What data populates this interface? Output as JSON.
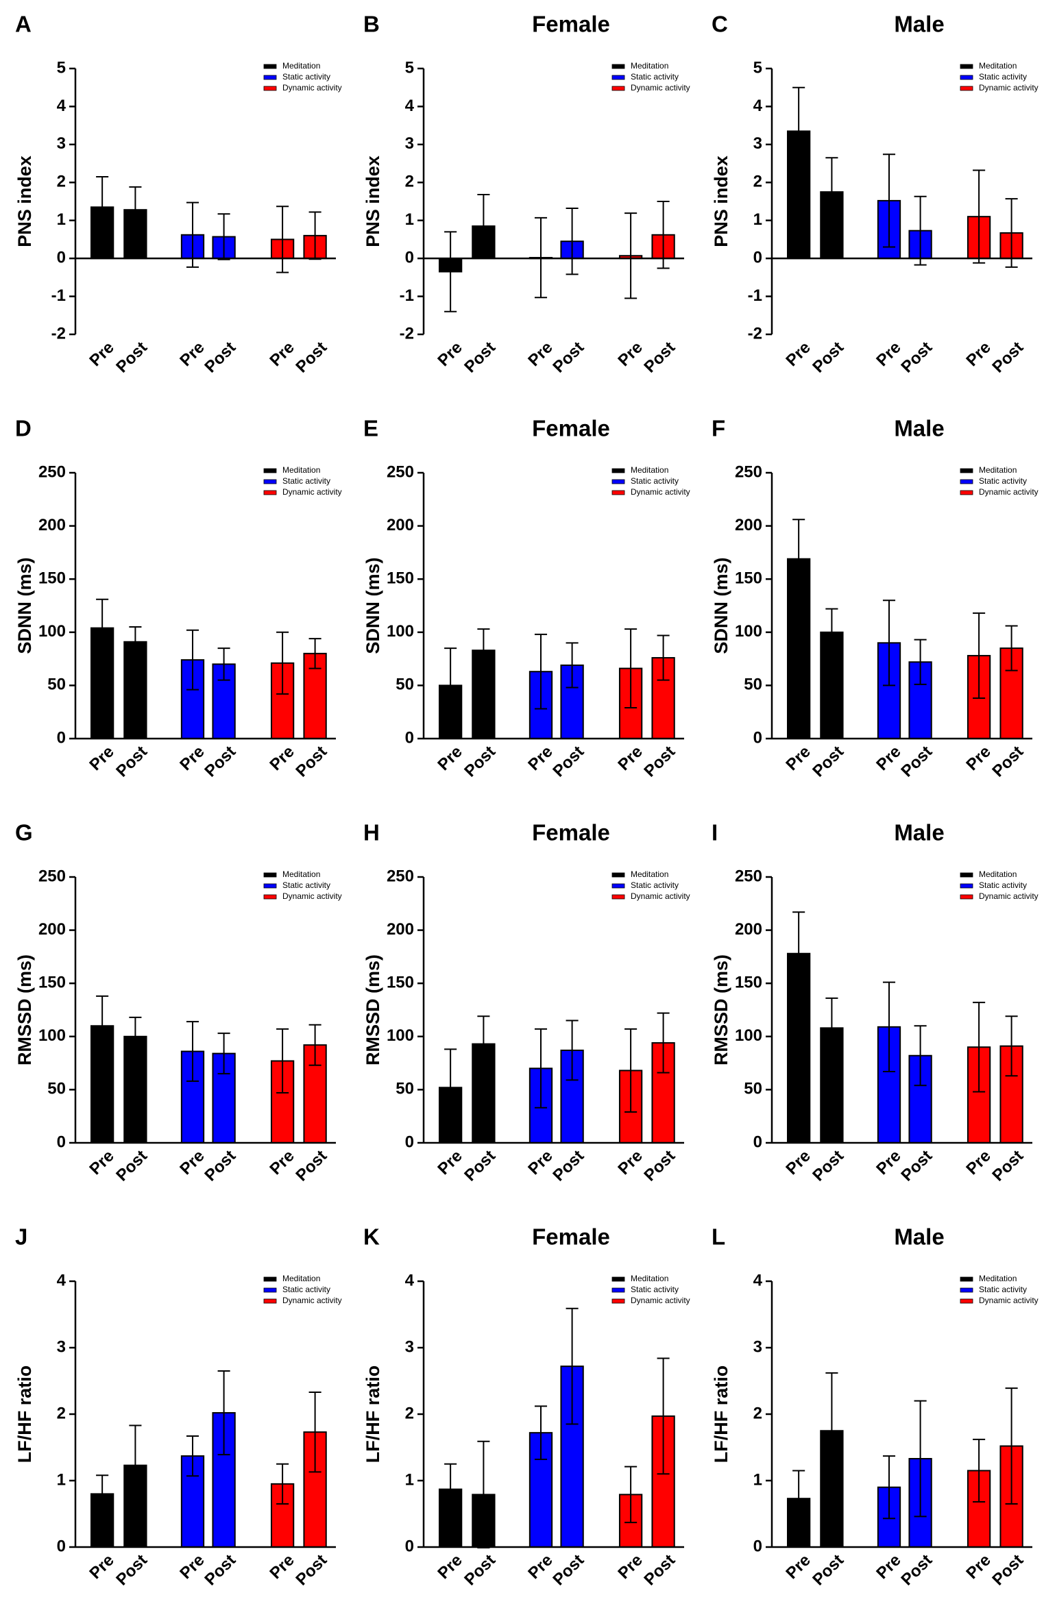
{
  "chart_data": [
    {
      "type": "bar",
      "label": "A",
      "y_label": "PNS index",
      "ylim": [
        -2,
        5
      ],
      "yticks": [
        -2,
        -1,
        0,
        1,
        2,
        3,
        4,
        5
      ],
      "categories": [
        "Pre",
        "Post",
        "Pre",
        "Post",
        "Pre",
        "Post"
      ],
      "series": [
        {
          "name": "Meditation",
          "color": "#000000",
          "values": [
            1.35,
            1.28,
            null,
            null,
            null,
            null
          ],
          "errors": [
            0.8,
            0.6,
            null,
            null,
            null,
            null
          ]
        },
        {
          "name": "Static activity",
          "color": "#0000ff",
          "values": [
            null,
            null,
            0.62,
            0.57,
            null,
            null
          ],
          "errors": [
            null,
            null,
            0.85,
            0.6,
            null,
            null
          ]
        },
        {
          "name": "Dynamic activity",
          "color": "#ff0000",
          "values": [
            null,
            null,
            null,
            null,
            0.5,
            0.6
          ],
          "errors": [
            null,
            null,
            null,
            null,
            0.87,
            0.62
          ]
        }
      ]
    },
    {
      "type": "bar",
      "label": "B",
      "title": "Female",
      "y_label": "PNS index",
      "ylim": [
        -2,
        5
      ],
      "yticks": [
        -2,
        -1,
        0,
        1,
        2,
        3,
        4,
        5
      ],
      "categories": [
        "Pre",
        "Post",
        "Pre",
        "Post",
        "Pre",
        "Post"
      ],
      "series": [
        {
          "name": "Meditation",
          "color": "#000000",
          "values": [
            -0.35,
            0.85,
            null,
            null,
            null,
            null
          ],
          "errors": [
            1.05,
            0.83,
            null,
            null,
            null,
            null
          ]
        },
        {
          "name": "Static activity",
          "color": "#0000ff",
          "values": [
            null,
            null,
            0.02,
            0.45,
            null,
            null
          ],
          "errors": [
            null,
            null,
            1.05,
            0.87,
            null,
            null
          ]
        },
        {
          "name": "Dynamic activity",
          "color": "#ff0000",
          "values": [
            null,
            null,
            null,
            null,
            0.07,
            0.62
          ],
          "errors": [
            null,
            null,
            null,
            null,
            1.12,
            0.88
          ]
        }
      ]
    },
    {
      "type": "bar",
      "label": "C",
      "title": "Male",
      "y_label": "PNS index",
      "ylim": [
        -2,
        5
      ],
      "yticks": [
        -2,
        -1,
        0,
        1,
        2,
        3,
        4,
        5
      ],
      "categories": [
        "Pre",
        "Post",
        "Pre",
        "Post",
        "Pre",
        "Post"
      ],
      "series": [
        {
          "name": "Meditation",
          "color": "#000000",
          "values": [
            3.35,
            1.75,
            null,
            null,
            null,
            null
          ],
          "errors": [
            1.15,
            0.9,
            null,
            null,
            null,
            null
          ]
        },
        {
          "name": "Static activity",
          "color": "#0000ff",
          "values": [
            null,
            null,
            1.52,
            0.73,
            null,
            null
          ],
          "errors": [
            null,
            null,
            1.22,
            0.9,
            null,
            null
          ]
        },
        {
          "name": "Dynamic activity",
          "color": "#ff0000",
          "values": [
            null,
            null,
            null,
            null,
            1.1,
            0.67
          ],
          "errors": [
            null,
            null,
            null,
            null,
            1.22,
            0.9
          ]
        }
      ]
    },
    {
      "type": "bar",
      "label": "D",
      "y_label": "SDNN (ms)",
      "ylim": [
        0,
        250
      ],
      "yticks": [
        0,
        50,
        100,
        150,
        200,
        250
      ],
      "categories": [
        "Pre",
        "Post",
        "Pre",
        "Post",
        "Pre",
        "Post"
      ],
      "series": [
        {
          "name": "Meditation",
          "color": "#000000",
          "values": [
            104,
            91,
            null,
            null,
            null,
            null
          ],
          "errors": [
            27,
            14,
            null,
            null,
            null,
            null
          ]
        },
        {
          "name": "Static activity",
          "color": "#0000ff",
          "values": [
            null,
            null,
            74,
            70,
            null,
            null
          ],
          "errors": [
            null,
            null,
            28,
            15,
            null,
            null
          ]
        },
        {
          "name": "Dynamic activity",
          "color": "#ff0000",
          "values": [
            null,
            null,
            null,
            null,
            71,
            80
          ],
          "errors": [
            null,
            null,
            null,
            null,
            29,
            14
          ]
        }
      ]
    },
    {
      "type": "bar",
      "label": "E",
      "title": "Female",
      "y_label": "SDNN (ms)",
      "ylim": [
        0,
        250
      ],
      "yticks": [
        0,
        50,
        100,
        150,
        200,
        250
      ],
      "categories": [
        "Pre",
        "Post",
        "Pre",
        "Post",
        "Pre",
        "Post"
      ],
      "series": [
        {
          "name": "Meditation",
          "color": "#000000",
          "values": [
            50,
            83,
            null,
            null,
            null,
            null
          ],
          "errors": [
            35,
            20,
            null,
            null,
            null,
            null
          ]
        },
        {
          "name": "Static activity",
          "color": "#0000ff",
          "values": [
            null,
            null,
            63,
            69,
            null,
            null
          ],
          "errors": [
            null,
            null,
            35,
            21,
            null,
            null
          ]
        },
        {
          "name": "Dynamic activity",
          "color": "#ff0000",
          "values": [
            null,
            null,
            null,
            null,
            66,
            76
          ],
          "errors": [
            null,
            null,
            null,
            null,
            37,
            21
          ]
        }
      ]
    },
    {
      "type": "bar",
      "label": "F",
      "title": "Male",
      "y_label": "SDNN (ms)",
      "ylim": [
        0,
        250
      ],
      "yticks": [
        0,
        50,
        100,
        150,
        200,
        250
      ],
      "categories": [
        "Pre",
        "Post",
        "Pre",
        "Post",
        "Pre",
        "Post"
      ],
      "series": [
        {
          "name": "Meditation",
          "color": "#000000",
          "values": [
            169,
            100,
            null,
            null,
            null,
            null
          ],
          "errors": [
            37,
            22,
            null,
            null,
            null,
            null
          ]
        },
        {
          "name": "Static activity",
          "color": "#0000ff",
          "values": [
            null,
            null,
            90,
            72,
            null,
            null
          ],
          "errors": [
            null,
            null,
            40,
            21,
            null,
            null
          ]
        },
        {
          "name": "Dynamic activity",
          "color": "#ff0000",
          "values": [
            null,
            null,
            null,
            null,
            78,
            85
          ],
          "errors": [
            null,
            null,
            null,
            null,
            40,
            21
          ]
        }
      ]
    },
    {
      "type": "bar",
      "label": "G",
      "y_label": "RMSSD (ms)",
      "ylim": [
        0,
        250
      ],
      "yticks": [
        0,
        50,
        100,
        150,
        200,
        250
      ],
      "categories": [
        "Pre",
        "Post",
        "Pre",
        "Post",
        "Pre",
        "Post"
      ],
      "series": [
        {
          "name": "Meditation",
          "color": "#000000",
          "values": [
            110,
            100,
            null,
            null,
            null,
            null
          ],
          "errors": [
            28,
            18,
            null,
            null,
            null,
            null
          ]
        },
        {
          "name": "Static activity",
          "color": "#0000ff",
          "values": [
            null,
            null,
            86,
            84,
            null,
            null
          ],
          "errors": [
            null,
            null,
            28,
            19,
            null,
            null
          ]
        },
        {
          "name": "Dynamic activity",
          "color": "#ff0000",
          "values": [
            null,
            null,
            null,
            null,
            77,
            92
          ],
          "errors": [
            null,
            null,
            null,
            null,
            30,
            19
          ]
        }
      ]
    },
    {
      "type": "bar",
      "label": "H",
      "title": "Female",
      "y_label": "RMSSD (ms)",
      "ylim": [
        0,
        250
      ],
      "yticks": [
        0,
        50,
        100,
        150,
        200,
        250
      ],
      "categories": [
        "Pre",
        "Post",
        "Pre",
        "Post",
        "Pre",
        "Post"
      ],
      "series": [
        {
          "name": "Meditation",
          "color": "#000000",
          "values": [
            52,
            93,
            null,
            null,
            null,
            null
          ],
          "errors": [
            36,
            26,
            null,
            null,
            null,
            null
          ]
        },
        {
          "name": "Static activity",
          "color": "#0000ff",
          "values": [
            null,
            null,
            70,
            87,
            null,
            null
          ],
          "errors": [
            null,
            null,
            37,
            28,
            null,
            null
          ]
        },
        {
          "name": "Dynamic activity",
          "color": "#ff0000",
          "values": [
            null,
            null,
            null,
            null,
            68,
            94
          ],
          "errors": [
            null,
            null,
            null,
            null,
            39,
            28
          ]
        }
      ]
    },
    {
      "type": "bar",
      "label": "I",
      "title": "Male",
      "y_label": "RMSSD (ms)",
      "ylim": [
        0,
        250
      ],
      "yticks": [
        0,
        50,
        100,
        150,
        200,
        250
      ],
      "categories": [
        "Pre",
        "Post",
        "Pre",
        "Post",
        "Pre",
        "Post"
      ],
      "series": [
        {
          "name": "Meditation",
          "color": "#000000",
          "values": [
            178,
            108,
            null,
            null,
            null,
            null
          ],
          "errors": [
            39,
            28,
            null,
            null,
            null,
            null
          ]
        },
        {
          "name": "Static activity",
          "color": "#0000ff",
          "values": [
            null,
            null,
            109,
            82,
            null,
            null
          ],
          "errors": [
            null,
            null,
            42,
            28,
            null,
            null
          ]
        },
        {
          "name": "Dynamic activity",
          "color": "#ff0000",
          "values": [
            null,
            null,
            null,
            null,
            90,
            91
          ],
          "errors": [
            null,
            null,
            null,
            null,
            42,
            28
          ]
        }
      ]
    },
    {
      "type": "bar",
      "label": "J",
      "y_label": "LF/HF ratio",
      "ylim": [
        0,
        4
      ],
      "yticks": [
        0,
        1,
        2,
        3,
        4
      ],
      "categories": [
        "Pre",
        "Post",
        "Pre",
        "Post",
        "Pre",
        "Post"
      ],
      "series": [
        {
          "name": "Meditation",
          "color": "#000000",
          "values": [
            0.8,
            1.23,
            null,
            null,
            null,
            null
          ],
          "errors": [
            0.28,
            0.6,
            null,
            null,
            null,
            null
          ]
        },
        {
          "name": "Static activity",
          "color": "#0000ff",
          "values": [
            null,
            null,
            1.37,
            2.02,
            null,
            null
          ],
          "errors": [
            null,
            null,
            0.3,
            0.63,
            null,
            null
          ]
        },
        {
          "name": "Dynamic activity",
          "color": "#ff0000",
          "values": [
            null,
            null,
            null,
            null,
            0.95,
            1.73
          ],
          "errors": [
            null,
            null,
            null,
            null,
            0.3,
            0.6
          ]
        }
      ]
    },
    {
      "type": "bar",
      "label": "K",
      "title": "Female",
      "y_label": "LF/HF ratio",
      "ylim": [
        0,
        4
      ],
      "yticks": [
        0,
        1,
        2,
        3,
        4
      ],
      "categories": [
        "Pre",
        "Post",
        "Pre",
        "Post",
        "Pre",
        "Post"
      ],
      "series": [
        {
          "name": "Meditation",
          "color": "#000000",
          "values": [
            0.87,
            0.79,
            null,
            null,
            null,
            null
          ],
          "errors": [
            0.38,
            0.8,
            null,
            null,
            null,
            null
          ]
        },
        {
          "name": "Static activity",
          "color": "#0000ff",
          "values": [
            null,
            null,
            1.72,
            2.72,
            null,
            null
          ],
          "errors": [
            null,
            null,
            0.4,
            0.87,
            null,
            null
          ]
        },
        {
          "name": "Dynamic activity",
          "color": "#ff0000",
          "values": [
            null,
            null,
            null,
            null,
            0.79,
            1.97
          ],
          "errors": [
            null,
            null,
            null,
            null,
            0.42,
            0.87
          ]
        }
      ]
    },
    {
      "type": "bar",
      "label": "L",
      "title": "Male",
      "y_label": "LF/HF ratio",
      "ylim": [
        0,
        4
      ],
      "yticks": [
        0,
        1,
        2,
        3,
        4
      ],
      "categories": [
        "Pre",
        "Post",
        "Pre",
        "Post",
        "Pre",
        "Post"
      ],
      "series": [
        {
          "name": "Meditation",
          "color": "#000000",
          "values": [
            0.73,
            1.75,
            null,
            null,
            null,
            null
          ],
          "errors": [
            0.42,
            0.87,
            null,
            null,
            null,
            null
          ]
        },
        {
          "name": "Static activity",
          "color": "#0000ff",
          "values": [
            null,
            null,
            0.9,
            1.33,
            null,
            null
          ],
          "errors": [
            null,
            null,
            0.47,
            0.87,
            null,
            null
          ]
        },
        {
          "name": "Dynamic activity",
          "color": "#ff0000",
          "values": [
            null,
            null,
            null,
            null,
            1.15,
            1.52
          ],
          "errors": [
            null,
            null,
            null,
            null,
            0.47,
            0.87
          ]
        }
      ]
    }
  ]
}
